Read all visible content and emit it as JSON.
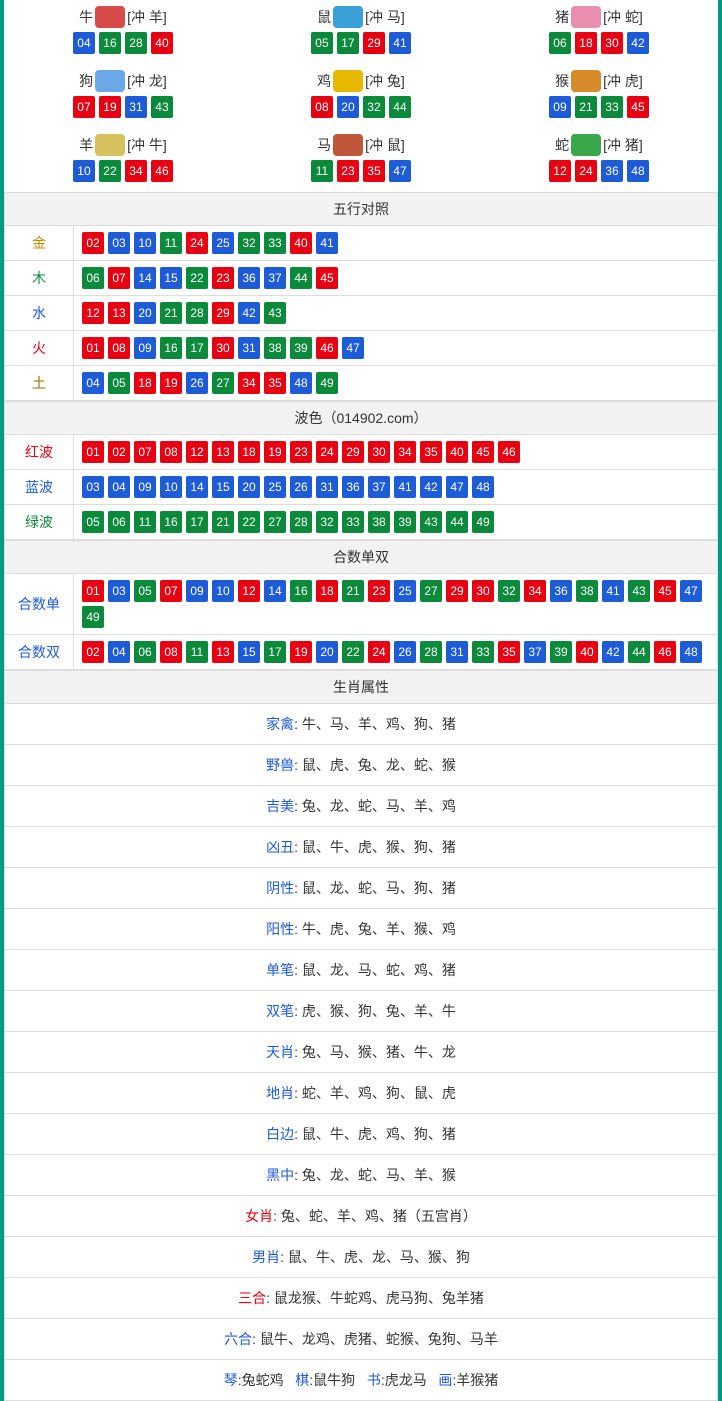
{
  "colors": {
    "red": "#e60012",
    "blue": "#1e5bd6",
    "green": "#0a8a3a",
    "teal_border": "#009a7e",
    "header_bg": "#f2f2f2"
  },
  "ball_class": {
    "r": "red",
    "b": "blue",
    "g": "green"
  },
  "zodiac": [
    {
      "name": "牛",
      "clash": "[冲 羊]",
      "icon_color": "#d94a4a",
      "balls": [
        {
          "n": "04",
          "c": "b"
        },
        {
          "n": "16",
          "c": "g"
        },
        {
          "n": "28",
          "c": "g"
        },
        {
          "n": "40",
          "c": "r"
        }
      ]
    },
    {
      "name": "鼠",
      "clash": "[冲 马]",
      "icon_color": "#3aa0d8",
      "balls": [
        {
          "n": "05",
          "c": "g"
        },
        {
          "n": "17",
          "c": "g"
        },
        {
          "n": "29",
          "c": "r"
        },
        {
          "n": "41",
          "c": "b"
        }
      ]
    },
    {
      "name": "猪",
      "clash": "[冲 蛇]",
      "icon_color": "#e88fb0",
      "balls": [
        {
          "n": "06",
          "c": "g"
        },
        {
          "n": "18",
          "c": "r"
        },
        {
          "n": "30",
          "c": "r"
        },
        {
          "n": "42",
          "c": "b"
        }
      ]
    },
    {
      "name": "狗",
      "clash": "[冲 龙]",
      "icon_color": "#6aa8e8",
      "balls": [
        {
          "n": "07",
          "c": "r"
        },
        {
          "n": "19",
          "c": "r"
        },
        {
          "n": "31",
          "c": "b"
        },
        {
          "n": "43",
          "c": "g"
        }
      ]
    },
    {
      "name": "鸡",
      "clash": "[冲 兔]",
      "icon_color": "#e6b800",
      "balls": [
        {
          "n": "08",
          "c": "r"
        },
        {
          "n": "20",
          "c": "b"
        },
        {
          "n": "32",
          "c": "g"
        },
        {
          "n": "44",
          "c": "g"
        }
      ]
    },
    {
      "name": "猴",
      "clash": "[冲 虎]",
      "icon_color": "#d68a2a",
      "balls": [
        {
          "n": "09",
          "c": "b"
        },
        {
          "n": "21",
          "c": "g"
        },
        {
          "n": "33",
          "c": "g"
        },
        {
          "n": "45",
          "c": "r"
        }
      ]
    },
    {
      "name": "羊",
      "clash": "[冲 牛]",
      "icon_color": "#d6c060",
      "balls": [
        {
          "n": "10",
          "c": "b"
        },
        {
          "n": "22",
          "c": "g"
        },
        {
          "n": "34",
          "c": "r"
        },
        {
          "n": "46",
          "c": "r"
        }
      ]
    },
    {
      "name": "马",
      "clash": "[冲 鼠]",
      "icon_color": "#c0563a",
      "balls": [
        {
          "n": "11",
          "c": "g"
        },
        {
          "n": "23",
          "c": "r"
        },
        {
          "n": "35",
          "c": "r"
        },
        {
          "n": "47",
          "c": "b"
        }
      ]
    },
    {
      "name": "蛇",
      "clash": "[冲 猪]",
      "icon_color": "#3aa84a",
      "balls": [
        {
          "n": "12",
          "c": "r"
        },
        {
          "n": "24",
          "c": "r"
        },
        {
          "n": "36",
          "c": "b"
        },
        {
          "n": "48",
          "c": "b"
        }
      ]
    }
  ],
  "wuxing": {
    "title": "五行对照",
    "rows": [
      {
        "label": "金",
        "cls": "lab-gold",
        "balls": [
          {
            "n": "02",
            "c": "r"
          },
          {
            "n": "03",
            "c": "b"
          },
          {
            "n": "10",
            "c": "b"
          },
          {
            "n": "11",
            "c": "g"
          },
          {
            "n": "24",
            "c": "r"
          },
          {
            "n": "25",
            "c": "b"
          },
          {
            "n": "32",
            "c": "g"
          },
          {
            "n": "33",
            "c": "g"
          },
          {
            "n": "40",
            "c": "r"
          },
          {
            "n": "41",
            "c": "b"
          }
        ]
      },
      {
        "label": "木",
        "cls": "lab-wood",
        "balls": [
          {
            "n": "06",
            "c": "g"
          },
          {
            "n": "07",
            "c": "r"
          },
          {
            "n": "14",
            "c": "b"
          },
          {
            "n": "15",
            "c": "b"
          },
          {
            "n": "22",
            "c": "g"
          },
          {
            "n": "23",
            "c": "r"
          },
          {
            "n": "36",
            "c": "b"
          },
          {
            "n": "37",
            "c": "b"
          },
          {
            "n": "44",
            "c": "g"
          },
          {
            "n": "45",
            "c": "r"
          }
        ]
      },
      {
        "label": "水",
        "cls": "lab-water",
        "balls": [
          {
            "n": "12",
            "c": "r"
          },
          {
            "n": "13",
            "c": "r"
          },
          {
            "n": "20",
            "c": "b"
          },
          {
            "n": "21",
            "c": "g"
          },
          {
            "n": "28",
            "c": "g"
          },
          {
            "n": "29",
            "c": "r"
          },
          {
            "n": "42",
            "c": "b"
          },
          {
            "n": "43",
            "c": "g"
          }
        ]
      },
      {
        "label": "火",
        "cls": "lab-fire",
        "balls": [
          {
            "n": "01",
            "c": "r"
          },
          {
            "n": "08",
            "c": "r"
          },
          {
            "n": "09",
            "c": "b"
          },
          {
            "n": "16",
            "c": "g"
          },
          {
            "n": "17",
            "c": "g"
          },
          {
            "n": "30",
            "c": "r"
          },
          {
            "n": "31",
            "c": "b"
          },
          {
            "n": "38",
            "c": "g"
          },
          {
            "n": "39",
            "c": "g"
          },
          {
            "n": "46",
            "c": "r"
          },
          {
            "n": "47",
            "c": "b"
          }
        ]
      },
      {
        "label": "土",
        "cls": "lab-earth",
        "balls": [
          {
            "n": "04",
            "c": "b"
          },
          {
            "n": "05",
            "c": "g"
          },
          {
            "n": "18",
            "c": "r"
          },
          {
            "n": "19",
            "c": "r"
          },
          {
            "n": "26",
            "c": "b"
          },
          {
            "n": "27",
            "c": "g"
          },
          {
            "n": "34",
            "c": "r"
          },
          {
            "n": "35",
            "c": "r"
          },
          {
            "n": "48",
            "c": "b"
          },
          {
            "n": "49",
            "c": "g"
          }
        ]
      }
    ]
  },
  "bose": {
    "title": "波色（014902.com）",
    "rows": [
      {
        "label": "红波",
        "cls": "lab-red",
        "balls": [
          {
            "n": "01",
            "c": "r"
          },
          {
            "n": "02",
            "c": "r"
          },
          {
            "n": "07",
            "c": "r"
          },
          {
            "n": "08",
            "c": "r"
          },
          {
            "n": "12",
            "c": "r"
          },
          {
            "n": "13",
            "c": "r"
          },
          {
            "n": "18",
            "c": "r"
          },
          {
            "n": "19",
            "c": "r"
          },
          {
            "n": "23",
            "c": "r"
          },
          {
            "n": "24",
            "c": "r"
          },
          {
            "n": "29",
            "c": "r"
          },
          {
            "n": "30",
            "c": "r"
          },
          {
            "n": "34",
            "c": "r"
          },
          {
            "n": "35",
            "c": "r"
          },
          {
            "n": "40",
            "c": "r"
          },
          {
            "n": "45",
            "c": "r"
          },
          {
            "n": "46",
            "c": "r"
          }
        ]
      },
      {
        "label": "蓝波",
        "cls": "lab-blue",
        "balls": [
          {
            "n": "03",
            "c": "b"
          },
          {
            "n": "04",
            "c": "b"
          },
          {
            "n": "09",
            "c": "b"
          },
          {
            "n": "10",
            "c": "b"
          },
          {
            "n": "14",
            "c": "b"
          },
          {
            "n": "15",
            "c": "b"
          },
          {
            "n": "20",
            "c": "b"
          },
          {
            "n": "25",
            "c": "b"
          },
          {
            "n": "26",
            "c": "b"
          },
          {
            "n": "31",
            "c": "b"
          },
          {
            "n": "36",
            "c": "b"
          },
          {
            "n": "37",
            "c": "b"
          },
          {
            "n": "41",
            "c": "b"
          },
          {
            "n": "42",
            "c": "b"
          },
          {
            "n": "47",
            "c": "b"
          },
          {
            "n": "48",
            "c": "b"
          }
        ]
      },
      {
        "label": "绿波",
        "cls": "lab-green",
        "balls": [
          {
            "n": "05",
            "c": "g"
          },
          {
            "n": "06",
            "c": "g"
          },
          {
            "n": "11",
            "c": "g"
          },
          {
            "n": "16",
            "c": "g"
          },
          {
            "n": "17",
            "c": "g"
          },
          {
            "n": "21",
            "c": "g"
          },
          {
            "n": "22",
            "c": "g"
          },
          {
            "n": "27",
            "c": "g"
          },
          {
            "n": "28",
            "c": "g"
          },
          {
            "n": "32",
            "c": "g"
          },
          {
            "n": "33",
            "c": "g"
          },
          {
            "n": "38",
            "c": "g"
          },
          {
            "n": "39",
            "c": "g"
          },
          {
            "n": "43",
            "c": "g"
          },
          {
            "n": "44",
            "c": "g"
          },
          {
            "n": "49",
            "c": "g"
          }
        ]
      }
    ]
  },
  "heshu": {
    "title": "合数单双",
    "rows": [
      {
        "label": "合数单",
        "cls": "lab-blue",
        "balls": [
          {
            "n": "01",
            "c": "r"
          },
          {
            "n": "03",
            "c": "b"
          },
          {
            "n": "05",
            "c": "g"
          },
          {
            "n": "07",
            "c": "r"
          },
          {
            "n": "09",
            "c": "b"
          },
          {
            "n": "10",
            "c": "b"
          },
          {
            "n": "12",
            "c": "r"
          },
          {
            "n": "14",
            "c": "b"
          },
          {
            "n": "16",
            "c": "g"
          },
          {
            "n": "18",
            "c": "r"
          },
          {
            "n": "21",
            "c": "g"
          },
          {
            "n": "23",
            "c": "r"
          },
          {
            "n": "25",
            "c": "b"
          },
          {
            "n": "27",
            "c": "g"
          },
          {
            "n": "29",
            "c": "r"
          },
          {
            "n": "30",
            "c": "r"
          },
          {
            "n": "32",
            "c": "g"
          },
          {
            "n": "34",
            "c": "r"
          },
          {
            "n": "36",
            "c": "b"
          },
          {
            "n": "38",
            "c": "g"
          },
          {
            "n": "41",
            "c": "b"
          },
          {
            "n": "43",
            "c": "g"
          },
          {
            "n": "45",
            "c": "r"
          },
          {
            "n": "47",
            "c": "b"
          },
          {
            "n": "49",
            "c": "g"
          }
        ]
      },
      {
        "label": "合数双",
        "cls": "lab-blue",
        "balls": [
          {
            "n": "02",
            "c": "r"
          },
          {
            "n": "04",
            "c": "b"
          },
          {
            "n": "06",
            "c": "g"
          },
          {
            "n": "08",
            "c": "r"
          },
          {
            "n": "11",
            "c": "g"
          },
          {
            "n": "13",
            "c": "r"
          },
          {
            "n": "15",
            "c": "b"
          },
          {
            "n": "17",
            "c": "g"
          },
          {
            "n": "19",
            "c": "r"
          },
          {
            "n": "20",
            "c": "b"
          },
          {
            "n": "22",
            "c": "g"
          },
          {
            "n": "24",
            "c": "r"
          },
          {
            "n": "26",
            "c": "b"
          },
          {
            "n": "28",
            "c": "g"
          },
          {
            "n": "31",
            "c": "b"
          },
          {
            "n": "33",
            "c": "g"
          },
          {
            "n": "35",
            "c": "r"
          },
          {
            "n": "37",
            "c": "b"
          },
          {
            "n": "39",
            "c": "g"
          },
          {
            "n": "40",
            "c": "r"
          },
          {
            "n": "42",
            "c": "b"
          },
          {
            "n": "44",
            "c": "g"
          },
          {
            "n": "46",
            "c": "r"
          },
          {
            "n": "48",
            "c": "b"
          }
        ]
      }
    ]
  },
  "attrs": {
    "title": "生肖属性",
    "rows": [
      {
        "key": "家禽",
        "cls": "",
        "sep": ": ",
        "val": "牛、马、羊、鸡、狗、猪"
      },
      {
        "key": "野兽",
        "cls": "",
        "sep": ": ",
        "val": "鼠、虎、兔、龙、蛇、猴"
      },
      {
        "key": "吉美",
        "cls": "",
        "sep": ": ",
        "val": "兔、龙、蛇、马、羊、鸡"
      },
      {
        "key": "凶丑",
        "cls": "",
        "sep": ": ",
        "val": "鼠、牛、虎、猴、狗、猪"
      },
      {
        "key": "阴性",
        "cls": "",
        "sep": ": ",
        "val": "鼠、龙、蛇、马、狗、猪"
      },
      {
        "key": "阳性",
        "cls": "",
        "sep": ": ",
        "val": "牛、虎、兔、羊、猴、鸡"
      },
      {
        "key": "单笔",
        "cls": "",
        "sep": ": ",
        "val": "鼠、龙、马、蛇、鸡、猪"
      },
      {
        "key": "双笔",
        "cls": "",
        "sep": ": ",
        "val": "虎、猴、狗、兔、羊、牛"
      },
      {
        "key": "天肖",
        "cls": "",
        "sep": ": ",
        "val": "兔、马、猴、猪、牛、龙"
      },
      {
        "key": "地肖",
        "cls": "",
        "sep": ": ",
        "val": "蛇、羊、鸡、狗、鼠、虎"
      },
      {
        "key": "白边",
        "cls": "",
        "sep": ": ",
        "val": "鼠、牛、虎、鸡、狗、猪"
      },
      {
        "key": "黑中",
        "cls": "",
        "sep": ": ",
        "val": "兔、龙、蛇、马、羊、猴"
      },
      {
        "key": "女肖",
        "cls": "red",
        "sep": ": ",
        "val": "兔、蛇、羊、鸡、猪（五宫肖）"
      },
      {
        "key": "男肖",
        "cls": "",
        "sep": ": ",
        "val": "鼠、牛、虎、龙、马、猴、狗"
      },
      {
        "key": "三合",
        "cls": "red",
        "sep": ": ",
        "val": "鼠龙猴、牛蛇鸡、虎马狗、兔羊猪"
      },
      {
        "key": "六合",
        "cls": "",
        "sep": ": ",
        "val": "鼠牛、龙鸡、虎猪、蛇猴、兔狗、马羊"
      }
    ],
    "footer": [
      {
        "key": "琴",
        "val": ":兔蛇鸡"
      },
      {
        "key": "棋",
        "val": ":鼠牛狗"
      },
      {
        "key": "书",
        "val": ":虎龙马"
      },
      {
        "key": "画",
        "val": ":羊猴猪"
      }
    ]
  }
}
